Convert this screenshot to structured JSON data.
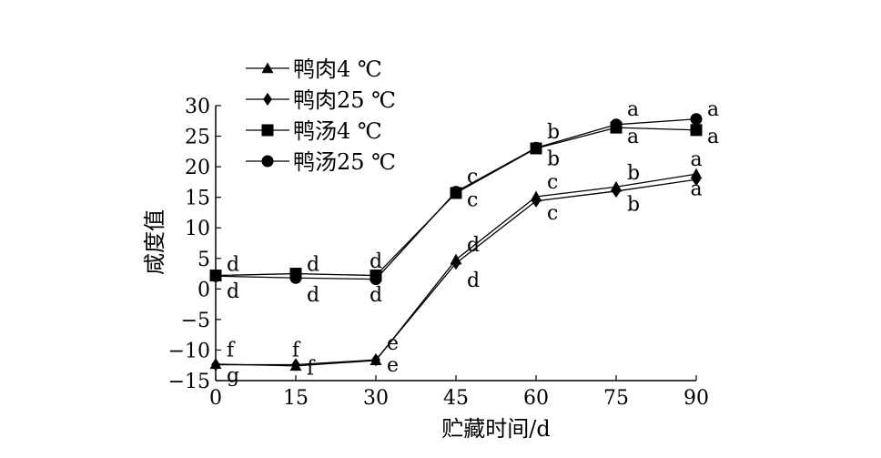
{
  "chart_data": {
    "type": "line",
    "xlabel": "贮藏时间/d",
    "ylabel": "咸度值",
    "x": [
      0,
      15,
      30,
      45,
      60,
      75,
      90
    ],
    "xlim": [
      0,
      90
    ],
    "ylim": [
      -15,
      30
    ],
    "xticks": [
      "0",
      "15",
      "30",
      "45",
      "60",
      "75",
      "90"
    ],
    "yticks": [
      "-15",
      "-10",
      "-5",
      "0",
      "5",
      "10",
      "15",
      "20",
      "25",
      "30"
    ],
    "grid": false,
    "legend_position": "top-left",
    "series": [
      {
        "name": "鸭肉4 ℃",
        "marker": "triangle",
        "values": [
          -12.3,
          -12.6,
          -11.7,
          4.8,
          15.1,
          16.7,
          18.8
        ]
      },
      {
        "name": "鸭肉25 ℃",
        "marker": "diamond",
        "values": [
          -12.4,
          -12.4,
          -11.6,
          4.2,
          14.4,
          16.0,
          17.9
        ]
      },
      {
        "name": "鸭汤4 ℃",
        "marker": "square",
        "values": [
          2.2,
          2.5,
          2.2,
          15.7,
          23.0,
          26.4,
          26.0
        ]
      },
      {
        "name": "鸭汤25 ℃",
        "marker": "circle",
        "values": [
          2.1,
          1.8,
          1.6,
          15.9,
          23.1,
          26.9,
          27.8
        ]
      }
    ],
    "annotations": [
      {
        "text": "d",
        "x": 0,
        "y": 4.0,
        "anchor": "right"
      },
      {
        "text": "d",
        "x": 0,
        "y": -0.4,
        "anchor": "right"
      },
      {
        "text": "d",
        "x": 15,
        "y": 4.0,
        "anchor": "right"
      },
      {
        "text": "d",
        "x": 15,
        "y": -1.0,
        "anchor": "right"
      },
      {
        "text": "d",
        "x": 30,
        "y": 4.5,
        "anchor": "center"
      },
      {
        "text": "d",
        "x": 30,
        "y": -1.0,
        "anchor": "center"
      },
      {
        "text": "c",
        "x": 45,
        "y": 18.4,
        "anchor": "right"
      },
      {
        "text": "c",
        "x": 45,
        "y": 14.6,
        "anchor": "right"
      },
      {
        "text": "b",
        "x": 60,
        "y": 25.7,
        "anchor": "right"
      },
      {
        "text": "b",
        "x": 60,
        "y": 21.3,
        "anchor": "right"
      },
      {
        "text": "a",
        "x": 75,
        "y": 29.4,
        "anchor": "right"
      },
      {
        "text": "a",
        "x": 75,
        "y": 24.9,
        "anchor": "right"
      },
      {
        "text": "a",
        "x": 90,
        "y": 29.4,
        "anchor": "right"
      },
      {
        "text": "a",
        "x": 90,
        "y": 24.9,
        "anchor": "right"
      },
      {
        "text": "e",
        "x": 30,
        "y": -8.9,
        "anchor": "right"
      },
      {
        "text": "e",
        "x": 30,
        "y": -12.5,
        "anchor": "right"
      },
      {
        "text": "d",
        "x": 45,
        "y": 7.2,
        "anchor": "right"
      },
      {
        "text": "d",
        "x": 45,
        "y": 1.4,
        "anchor": "right"
      },
      {
        "text": "c",
        "x": 60,
        "y": 17.5,
        "anchor": "right"
      },
      {
        "text": "c",
        "x": 60,
        "y": 12.4,
        "anchor": "right"
      },
      {
        "text": "b",
        "x": 75,
        "y": 19.0,
        "anchor": "right"
      },
      {
        "text": "b",
        "x": 75,
        "y": 13.8,
        "anchor": "right"
      },
      {
        "text": "a",
        "x": 90,
        "y": 21.2,
        "anchor": "center"
      },
      {
        "text": "a",
        "x": 90,
        "y": 16.4,
        "anchor": "center"
      },
      {
        "text": "f",
        "x": 0,
        "y": -10.0,
        "anchor": "right"
      },
      {
        "text": "g",
        "x": 0,
        "y": -14.2,
        "anchor": "right"
      },
      {
        "text": "f",
        "x": 15,
        "y": -10.0,
        "anchor": "center"
      },
      {
        "text": "f",
        "x": 15,
        "y": -13.0,
        "anchor": "right"
      }
    ]
  }
}
